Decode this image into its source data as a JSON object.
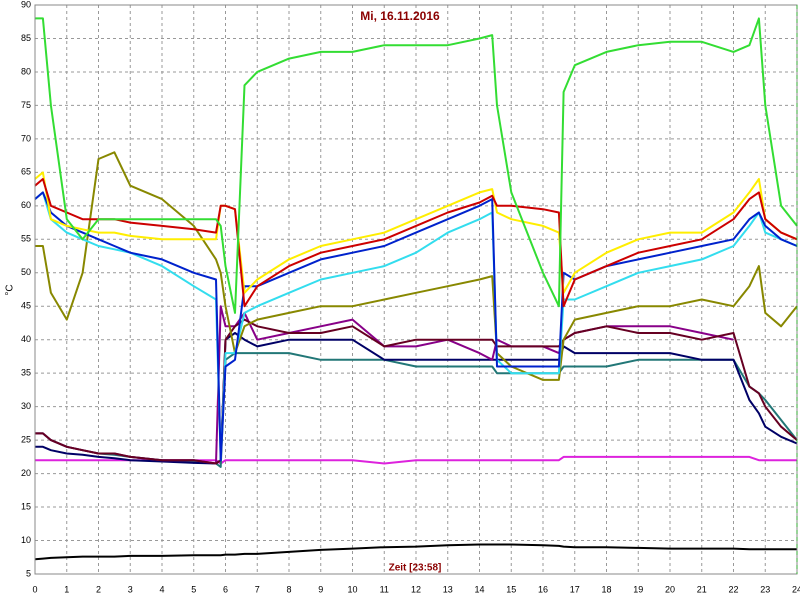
{
  "chart_data": {
    "type": "line",
    "title": "Mi, 16.11.2016",
    "x_label": "Zeit [23:58]",
    "y_label": "°C",
    "x": [
      0,
      0.25,
      0.5,
      1,
      1.5,
      2,
      2.5,
      3,
      4,
      5,
      5.7,
      5.85,
      6,
      6.3,
      6.6,
      7,
      8,
      9,
      10,
      11,
      12,
      13,
      14,
      14.4,
      14.55,
      15,
      16,
      16.5,
      16.65,
      17,
      18,
      19,
      20,
      21,
      22,
      22.5,
      22.8,
      23,
      23.5,
      24
    ],
    "series": [
      {
        "color": "#000000",
        "values": [
          7.2,
          7.3,
          7.4,
          7.5,
          7.6,
          7.6,
          7.6,
          7.7,
          7.7,
          7.8,
          7.8,
          7.8,
          7.9,
          7.9,
          8,
          8,
          8.3,
          8.6,
          8.8,
          9,
          9.1,
          9.3,
          9.4,
          9.4,
          9.4,
          9.4,
          9.3,
          9.2,
          9.1,
          9,
          9,
          8.9,
          8.8,
          8.8,
          8.8,
          8.7,
          8.7,
          8.7,
          8.7,
          8.7
        ]
      },
      {
        "color": "#dd22dd",
        "values": [
          22,
          22,
          22,
          22,
          22,
          22,
          22,
          22,
          22,
          22,
          22,
          21.5,
          22,
          22,
          22,
          22,
          22,
          22,
          22,
          21.5,
          22,
          22,
          22,
          22,
          22,
          22,
          22,
          22,
          22.5,
          22.5,
          22.5,
          22.5,
          22.5,
          22.5,
          22.5,
          22.5,
          22,
          22,
          22,
          22
        ]
      },
      {
        "color": "#227777",
        "values": [
          26,
          26,
          25,
          24,
          23.5,
          23,
          22.8,
          22.5,
          22,
          21.8,
          21.5,
          21,
          37,
          38,
          38,
          38,
          38,
          37,
          37,
          37,
          36,
          36,
          36,
          36,
          35,
          35,
          35,
          35,
          36,
          36,
          36,
          37,
          37,
          37,
          37,
          33,
          32,
          31,
          28,
          25
        ]
      },
      {
        "color": "#000066",
        "values": [
          24,
          24,
          23.5,
          23,
          22.8,
          22.5,
          22.3,
          22,
          21.8,
          21.6,
          21.5,
          22,
          40,
          41,
          40,
          39,
          40,
          40,
          40,
          37,
          37,
          37,
          37,
          37,
          37,
          37,
          37,
          37,
          39,
          38,
          38,
          38,
          38,
          37,
          37,
          31,
          29,
          27,
          25.5,
          24.5
        ]
      },
      {
        "color": "#880088",
        "values": [
          26,
          26,
          25,
          24,
          23.5,
          23,
          23,
          22.5,
          22,
          22,
          21.5,
          45,
          42,
          42,
          44,
          40,
          41,
          42,
          43,
          39,
          39,
          40,
          38,
          37,
          40,
          39,
          39,
          38,
          40,
          41,
          42,
          42,
          42,
          41,
          40,
          null,
          null,
          null,
          null,
          null
        ]
      },
      {
        "color": "#660022",
        "values": [
          26,
          26,
          25,
          24,
          23.5,
          23,
          23,
          22.5,
          22,
          22,
          21.5,
          22,
          40,
          42,
          43,
          42,
          41,
          41,
          42,
          39,
          40,
          40,
          40,
          40,
          39,
          39,
          39,
          39,
          40,
          41,
          42,
          41,
          41,
          40,
          41,
          33,
          32,
          30,
          27,
          25
        ]
      },
      {
        "color": "#888800",
        "values": [
          54,
          54,
          47,
          43,
          50,
          67,
          68,
          63,
          61,
          57,
          52,
          50,
          45,
          38,
          42,
          43,
          44,
          45,
          45,
          46,
          47,
          48,
          49,
          49.5,
          38,
          36,
          34,
          34,
          40,
          43,
          44,
          45,
          45,
          46,
          45,
          48,
          51,
          44,
          42,
          45
        ]
      },
      {
        "color": "#33ddee",
        "values": [
          61,
          62,
          58,
          56,
          55,
          54,
          53.5,
          53,
          51,
          48,
          46,
          22,
          38,
          38,
          44,
          45,
          47,
          49,
          50,
          51,
          53,
          56,
          58,
          59,
          37,
          35,
          35,
          35,
          46,
          46,
          48,
          50,
          51,
          52,
          54,
          57,
          59,
          56,
          55,
          54
        ]
      },
      {
        "color": "#0022cc",
        "values": [
          61,
          62,
          59,
          57,
          56,
          55,
          54,
          53,
          52,
          50,
          49,
          22,
          36,
          37,
          48,
          48,
          50,
          52,
          53,
          54,
          56,
          58,
          60,
          61,
          36,
          36,
          36,
          36,
          50,
          49,
          51,
          52,
          53,
          54,
          55,
          58,
          59,
          57,
          55,
          54
        ]
      },
      {
        "color": "#ffee00",
        "values": [
          64,
          65,
          58,
          57,
          56.5,
          56,
          56,
          55.5,
          55,
          55,
          55,
          60,
          60,
          59.5,
          47,
          49,
          52,
          54,
          55,
          56,
          58,
          60,
          62,
          62.5,
          59,
          58,
          57,
          56,
          47,
          50,
          53,
          55,
          56,
          56,
          59,
          62,
          64,
          58,
          56,
          55
        ]
      },
      {
        "color": "#cc0000",
        "values": [
          63,
          64,
          60,
          59,
          58,
          58,
          58,
          57.5,
          57,
          56.5,
          56,
          60,
          60,
          59.5,
          45,
          48,
          51,
          53,
          54,
          55,
          57,
          59,
          60.5,
          61.5,
          60,
          60,
          59.5,
          59,
          45,
          49,
          51,
          53,
          54,
          55,
          58,
          61,
          62,
          58,
          56,
          55
        ]
      },
      {
        "color": "#33dd33",
        "values": [
          88,
          88,
          75,
          58,
          55,
          58,
          58,
          58,
          58,
          58,
          58,
          57,
          51,
          44,
          78,
          80,
          82,
          83,
          83,
          84,
          84,
          84,
          85,
          85.5,
          75,
          62,
          50,
          45,
          77,
          81,
          83,
          84,
          84.5,
          84.5,
          83,
          84,
          88,
          75,
          60,
          57
        ]
      }
    ],
    "xlim": [
      0,
      24
    ],
    "xticks": [
      0,
      1,
      2,
      3,
      4,
      5,
      6,
      7,
      8,
      9,
      10,
      11,
      12,
      13,
      14,
      15,
      16,
      17,
      18,
      19,
      20,
      21,
      22,
      23,
      24
    ],
    "ylim": [
      5,
      90
    ],
    "yticks": [
      5,
      10,
      15,
      20,
      25,
      30,
      35,
      40,
      45,
      50,
      55,
      60,
      65,
      70,
      75,
      80,
      85,
      90
    ],
    "grid": true
  }
}
